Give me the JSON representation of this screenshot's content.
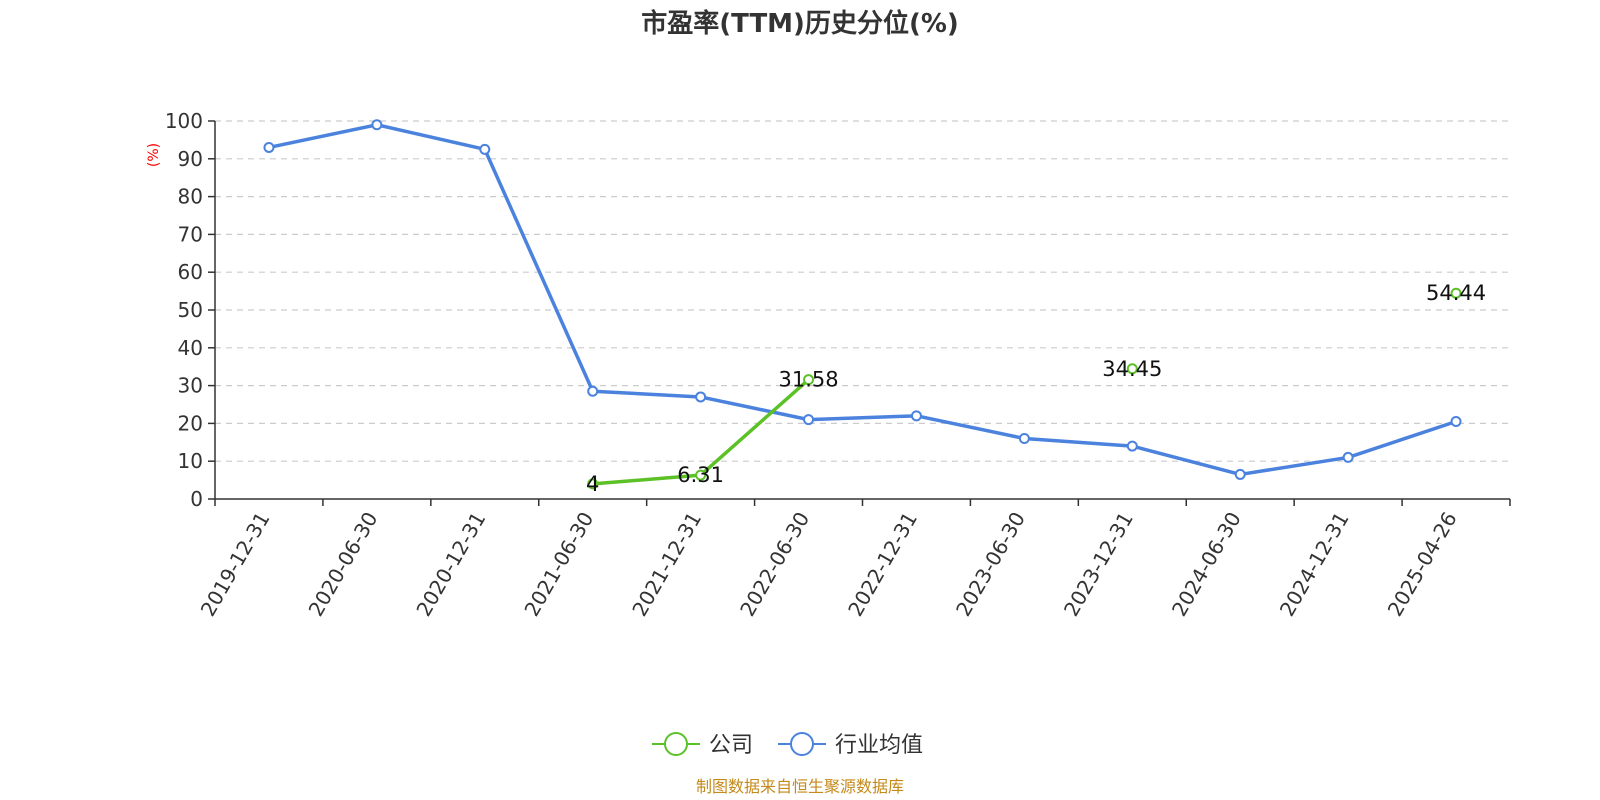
{
  "chart_data": {
    "type": "line",
    "title": "市盈率(TTM)历史分位(%)",
    "ylabel": "(%)",
    "ylim": [
      0,
      100
    ],
    "yticks": [
      0,
      10,
      20,
      30,
      40,
      50,
      60,
      70,
      80,
      90,
      100
    ],
    "categories": [
      "2019-12-31",
      "2020-06-30",
      "2020-12-31",
      "2021-06-30",
      "2021-12-31",
      "2022-06-30",
      "2022-12-31",
      "2023-06-30",
      "2023-12-31",
      "2024-06-30",
      "2024-12-31",
      "2025-04-26"
    ],
    "grid": true,
    "legend_position": "bottom",
    "series": [
      {
        "name": "公司",
        "color": "#5cc126",
        "values": [
          null,
          null,
          null,
          4,
          6.31,
          31.58,
          null,
          null,
          34.45,
          null,
          null,
          54.44
        ],
        "labels": [
          null,
          null,
          null,
          "4",
          "6.31",
          "31.58",
          null,
          null,
          "34.45",
          null,
          null,
          "54.44"
        ]
      },
      {
        "name": "行业均值",
        "color": "#4b82de",
        "values": [
          93,
          99,
          92.5,
          28.5,
          27,
          21,
          22,
          16,
          14,
          6.5,
          11,
          20.5
        ],
        "labels": null
      }
    ]
  },
  "source": "制图数据来自恒生聚源数据库",
  "source_color": "#c48a1b",
  "ylabel_color": "#ff0000"
}
